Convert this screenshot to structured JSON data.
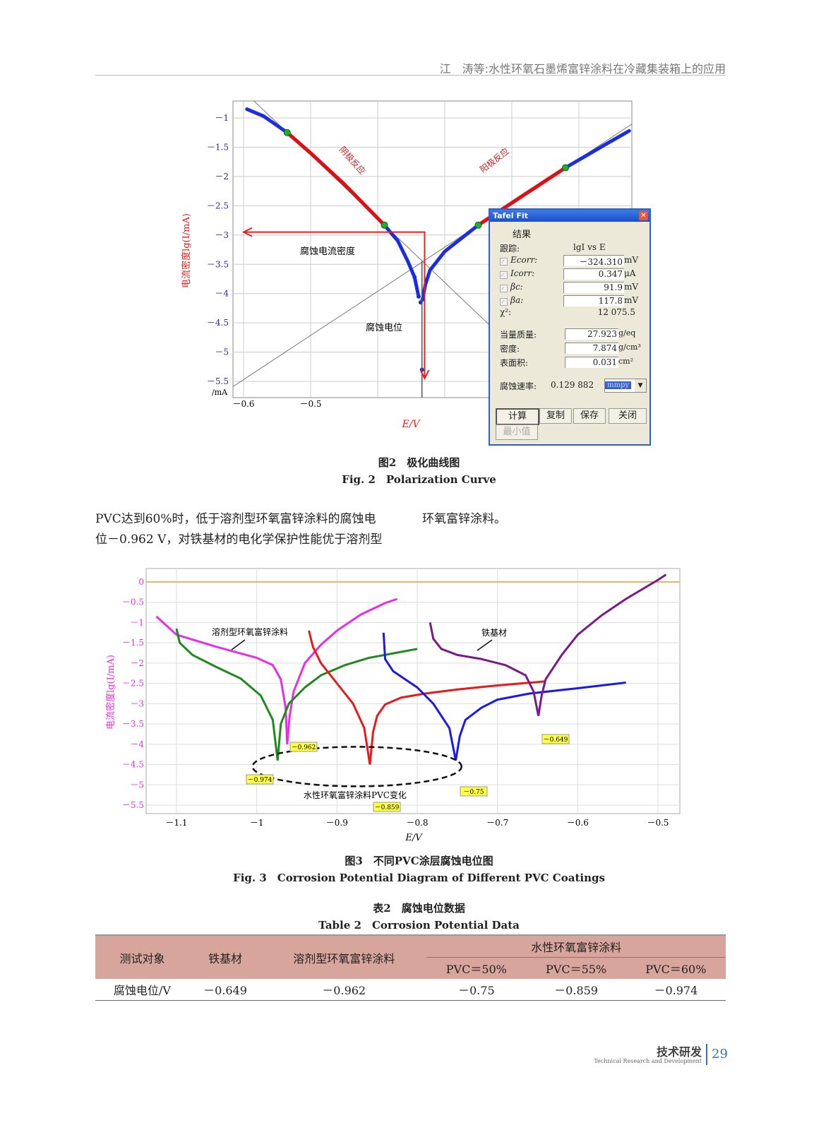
{
  "header": {
    "running_title": "江　涛等:水性环氧石墨烯富锌涂料在冷藏集装箱上的应用"
  },
  "fig2": {
    "caption_cn": "图2　极化曲线图",
    "caption_en": "Fig. 2　Polarization Curve",
    "ylabel": "电流密度lg(I/mA)",
    "xlabel": "E/V",
    "corner_label": "/mA",
    "annotations": {
      "cathodic": "阴极反应",
      "anodic": "阳极反应",
      "icorr": "腐蚀电流密度",
      "ecorr": "腐蚀电位"
    },
    "dialog": {
      "title": "Tafel Fit",
      "group": "结果",
      "trace_label": "跟踪:",
      "trace_value": "lgI vs E",
      "fields": [
        {
          "label": "Ecorr:",
          "value": "－324.310",
          "unit": "mV"
        },
        {
          "label": "Icorr:",
          "value": "0.347",
          "unit": "μA"
        },
        {
          "label": "βc:",
          "value": "91.9",
          "unit": "mV"
        },
        {
          "label": "βa:",
          "value": "117.8",
          "unit": "mV"
        }
      ],
      "chi_label": "χ²:",
      "chi_value": "12 075.5",
      "params": [
        {
          "label": "当量质量:",
          "value": "27.923",
          "unit": "g/eq"
        },
        {
          "label": "密度:",
          "value": "7.874",
          "unit": "g/cm³"
        },
        {
          "label": "表面积:",
          "value": "0.031",
          "unit": "cm²"
        }
      ],
      "rate_label": "腐蚀速率:",
      "rate_value": "0.129 882",
      "rate_unit": "mmpy",
      "buttons": [
        "计算",
        "复制",
        "保存",
        "关闭"
      ],
      "min_button": "最小值"
    }
  },
  "body_text": {
    "left_line1": "PVC达到60%时，低于溶剂型环氧富锌涂料的腐蚀电",
    "left_line2": "位－0.962 V，对铁基材的电化学保护性能优于溶剂型",
    "right_line1": "环氧富锌涂料。"
  },
  "fig3": {
    "caption_cn": "图3　不同PVC涂层腐蚀电位图",
    "caption_en": "Fig. 3　Corrosion Potential Diagram of Different PVC Coatings"
  },
  "table2": {
    "caption_cn": "表2　腐蚀电位数据",
    "caption_en": "Table 2　Corrosion Potential Data",
    "headers": {
      "object": "测试对象",
      "iron": "铁基材",
      "solvent": "溶剂型环氧富锌涂料",
      "water": "水性环氧富锌涂料",
      "pvc50": "PVC＝50%",
      "pvc55": "PVC＝55%",
      "pvc60": "PVC＝60%"
    },
    "row": {
      "label": "腐蚀电位/V",
      "iron": "－0.649",
      "solvent": "－0.962",
      "pvc50": "－0.75",
      "pvc55": "－0.859",
      "pvc60": "－0.974"
    }
  },
  "footer": {
    "section_cn": "技术研发",
    "section_en": "Technical Research and Development",
    "page": "29"
  },
  "chart_data": [
    {
      "type": "line",
      "xlabel": "E/V",
      "ylabel": "电流密度lg(I/mA)",
      "xticks": [
        -0.6,
        -0.5
      ],
      "yticks": [
        -1,
        -1.5,
        -2,
        -2.5,
        -3,
        -3.5,
        -4,
        -4.5,
        -5,
        -5.5
      ],
      "xlim": [
        -0.616,
        -0.021
      ],
      "ylim": [
        -5.9,
        -0.7
      ],
      "grid": true,
      "colors": {
        "data": "#1a2ee0",
        "fit": "#e01010",
        "tafel": "#777777",
        "arrow": "#e82020",
        "marker": "#22b022"
      },
      "series": [
        {
          "points": [
            [
              -0.595,
              -0.85
            ],
            [
              -0.57,
              -0.97
            ],
            [
              -0.535,
              -1.25
            ],
            [
              -0.5,
              -1.6
            ],
            [
              -0.45,
              -2.13
            ],
            [
              -0.39,
              -2.83
            ],
            [
              -0.37,
              -3.1
            ],
            [
              -0.355,
              -3.45
            ],
            [
              -0.345,
              -3.72
            ],
            [
              -0.339,
              -4.05
            ],
            [
              -0.336,
              -4.15
            ],
            [
              -0.334,
              -5.3
            ],
            [
              -0.333,
              -4.1
            ],
            [
              -0.329,
              -3.85
            ],
            [
              -0.322,
              -3.6
            ],
            [
              -0.3,
              -3.28
            ],
            [
              -0.25,
              -2.83
            ],
            [
              -0.18,
              -2.3
            ],
            [
              -0.12,
              -1.85
            ],
            [
              -0.06,
              -1.45
            ],
            [
              -0.025,
              -1.22
            ]
          ]
        }
      ],
      "fit_ranges": [
        [
          -0.535,
          -0.39
        ],
        [
          -0.25,
          -0.12
        ]
      ],
      "ecorr_arrow": {
        "E": -0.33,
        "lgI": -2.95
      }
    },
    {
      "type": "line",
      "xlabel": "E/V",
      "ylabel": "电流密度lg(I/mA)",
      "xticks": [
        -1.1,
        -1,
        -0.9,
        -0.8,
        -0.7,
        -0.6,
        -0.5
      ],
      "yticks": [
        0,
        -0.5,
        -1,
        -1.5,
        -2,
        -2.5,
        -3,
        -3.5,
        -4,
        -4.5,
        -5,
        -5.5
      ],
      "xlim": [
        -1.137,
        -0.473
      ],
      "ylim": [
        -5.6,
        0.3
      ],
      "grid": true,
      "series": [
        {
          "color": "#e62ee6",
          "label": "溶剂型环氧富锌涂料",
          "ecorr_label": "－0.962",
          "points": [
            [
              -1.125,
              -0.85
            ],
            [
              -1.1,
              -1.3
            ],
            [
              -1.05,
              -1.6
            ],
            [
              -1.0,
              -1.87
            ],
            [
              -0.98,
              -2.05
            ],
            [
              -0.97,
              -2.4
            ],
            [
              -0.964,
              -3.1
            ],
            [
              -0.962,
              -4.0
            ],
            [
              -0.959,
              -3.3
            ],
            [
              -0.954,
              -2.7
            ],
            [
              -0.94,
              -2.0
            ],
            [
              -0.92,
              -1.55
            ],
            [
              -0.9,
              -1.2
            ],
            [
              -0.87,
              -0.8
            ],
            [
              -0.84,
              -0.52
            ],
            [
              -0.825,
              -0.42
            ]
          ]
        },
        {
          "color": "#1e8a1e",
          "ecorr_label": "－0.974",
          "points": [
            [
              -1.1,
              -1.15
            ],
            [
              -1.096,
              -1.5
            ],
            [
              -1.08,
              -1.8
            ],
            [
              -1.05,
              -2.1
            ],
            [
              -1.02,
              -2.38
            ],
            [
              -0.995,
              -2.8
            ],
            [
              -0.98,
              -3.4
            ],
            [
              -0.974,
              -4.4
            ],
            [
              -0.97,
              -3.5
            ],
            [
              -0.96,
              -3.0
            ],
            [
              -0.94,
              -2.6
            ],
            [
              -0.92,
              -2.3
            ],
            [
              -0.89,
              -2.05
            ],
            [
              -0.86,
              -1.87
            ],
            [
              -0.83,
              -1.76
            ],
            [
              -0.8,
              -1.65
            ]
          ]
        },
        {
          "color": "#e61a1a",
          "ecorr_label": "－0.859",
          "points": [
            [
              -0.935,
              -1.2
            ],
            [
              -0.93,
              -1.6
            ],
            [
              -0.92,
              -2.0
            ],
            [
              -0.9,
              -2.5
            ],
            [
              -0.88,
              -3.0
            ],
            [
              -0.866,
              -3.6
            ],
            [
              -0.859,
              -4.5
            ],
            [
              -0.855,
              -3.7
            ],
            [
              -0.85,
              -3.3
            ],
            [
              -0.84,
              -3.02
            ],
            [
              -0.82,
              -2.85
            ],
            [
              -0.79,
              -2.75
            ],
            [
              -0.75,
              -2.65
            ],
            [
              -0.7,
              -2.55
            ],
            [
              -0.64,
              -2.45
            ]
          ]
        },
        {
          "color": "#1a1ae6",
          "ecorr_label": "－0.75",
          "points": [
            [
              -0.842,
              -1.25
            ],
            [
              -0.84,
              -1.9
            ],
            [
              -0.83,
              -2.2
            ],
            [
              -0.8,
              -2.6
            ],
            [
              -0.78,
              -3.0
            ],
            [
              -0.76,
              -3.6
            ],
            [
              -0.752,
              -4.4
            ],
            [
              -0.747,
              -3.8
            ],
            [
              -0.74,
              -3.4
            ],
            [
              -0.72,
              -3.1
            ],
            [
              -0.7,
              -2.9
            ],
            [
              -0.66,
              -2.75
            ],
            [
              -0.6,
              -2.62
            ],
            [
              -0.54,
              -2.48
            ]
          ]
        },
        {
          "color": "#7a1a8a",
          "label": "铁基材",
          "ecorr_label": "－0.649",
          "points": [
            [
              -0.784,
              -1.0
            ],
            [
              -0.78,
              -1.4
            ],
            [
              -0.77,
              -1.65
            ],
            [
              -0.75,
              -1.8
            ],
            [
              -0.72,
              -1.9
            ],
            [
              -0.69,
              -2.05
            ],
            [
              -0.665,
              -2.3
            ],
            [
              -0.655,
              -2.7
            ],
            [
              -0.649,
              -3.3
            ],
            [
              -0.645,
              -2.8
            ],
            [
              -0.64,
              -2.4
            ],
            [
              -0.62,
              -1.8
            ],
            [
              -0.6,
              -1.3
            ],
            [
              -0.57,
              -0.82
            ],
            [
              -0.54,
              -0.42
            ],
            [
              -0.5,
              0.05
            ],
            [
              -0.49,
              0.18
            ]
          ]
        }
      ],
      "reference_line": {
        "lgI": 0,
        "color": "#e89a3a"
      },
      "group_label": "水性环氧富锌涂料PVC变化"
    }
  ]
}
